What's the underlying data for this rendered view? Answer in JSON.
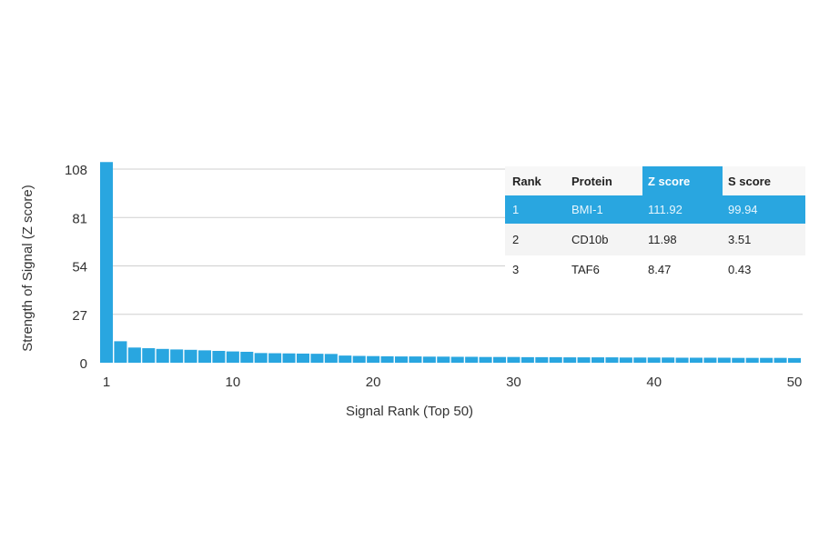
{
  "chart_data": {
    "type": "bar",
    "xlabel": "Signal Rank (Top 50)",
    "ylabel": "Strength of Signal (Z score)",
    "yticks": [
      0,
      27,
      54,
      81,
      108
    ],
    "xticks": [
      1,
      10,
      20,
      30,
      40,
      50
    ],
    "ylim": [
      0,
      108
    ],
    "grid": true,
    "bar_color": "#29a6e0",
    "x": [
      1,
      2,
      3,
      4,
      5,
      6,
      7,
      8,
      9,
      10,
      11,
      12,
      13,
      14,
      15,
      16,
      17,
      18,
      19,
      20,
      21,
      22,
      23,
      24,
      25,
      26,
      27,
      28,
      29,
      30,
      31,
      32,
      33,
      34,
      35,
      36,
      37,
      38,
      39,
      40,
      41,
      42,
      43,
      44,
      45,
      46,
      47,
      48,
      49,
      50
    ],
    "values": [
      111.92,
      11.98,
      8.47,
      8.1,
      7.7,
      7.4,
      7.2,
      6.9,
      6.6,
      6.3,
      6.1,
      5.4,
      5.3,
      5.2,
      5.1,
      5.0,
      4.9,
      4.0,
      3.8,
      3.7,
      3.6,
      3.5,
      3.5,
      3.4,
      3.4,
      3.3,
      3.3,
      3.2,
      3.2,
      3.2,
      3.1,
      3.1,
      3.1,
      3.0,
      3.0,
      3.0,
      3.0,
      2.9,
      2.9,
      2.9,
      2.9,
      2.8,
      2.8,
      2.8,
      2.8,
      2.7,
      2.7,
      2.7,
      2.7,
      2.6
    ]
  },
  "table": {
    "headers": [
      "Rank",
      "Protein",
      "Z score",
      "S score"
    ],
    "rows": [
      [
        "1",
        "BMI-1",
        "111.92",
        "99.94"
      ],
      [
        "2",
        "CD10b",
        "11.98",
        "3.51"
      ],
      [
        "3",
        "TAF6",
        "8.47",
        "0.43"
      ]
    ]
  }
}
